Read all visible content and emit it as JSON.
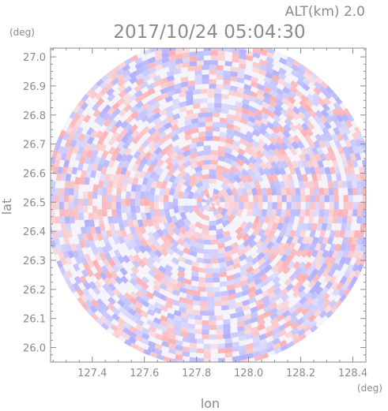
{
  "chart_data": {
    "type": "heatmap",
    "title": "2017/10/24 05:04:30",
    "subtitle": "ALT(km) 2.0",
    "xlabel": "lon",
    "ylabel": "lat",
    "xunit": "(deg)",
    "yunit": "(deg)",
    "xlim": [
      127.24,
      128.45
    ],
    "ylim": [
      25.95,
      27.03
    ],
    "xticks": [
      127.4,
      127.6,
      127.8,
      128.0,
      128.2,
      128.4
    ],
    "xtick_labels": [
      "127.4",
      "127.6",
      "127.8",
      "128.0",
      "128.2",
      "128.4"
    ],
    "yticks": [
      26.0,
      26.1,
      26.2,
      26.3,
      26.4,
      26.5,
      26.6,
      26.7,
      26.8,
      26.9,
      27.0
    ],
    "ytick_labels": [
      "26.0",
      "26.1",
      "26.2",
      "26.3",
      "26.4",
      "26.5",
      "26.6",
      "26.7",
      "26.8",
      "26.9",
      "27.0"
    ],
    "radar_center": [
      127.855,
      26.5
    ],
    "radar_range_deg": 0.635,
    "colors": {
      "positive": "#ff9a9a",
      "negative": "#9a9aff",
      "axis": "#8a8a8a"
    },
    "grid": false
  }
}
